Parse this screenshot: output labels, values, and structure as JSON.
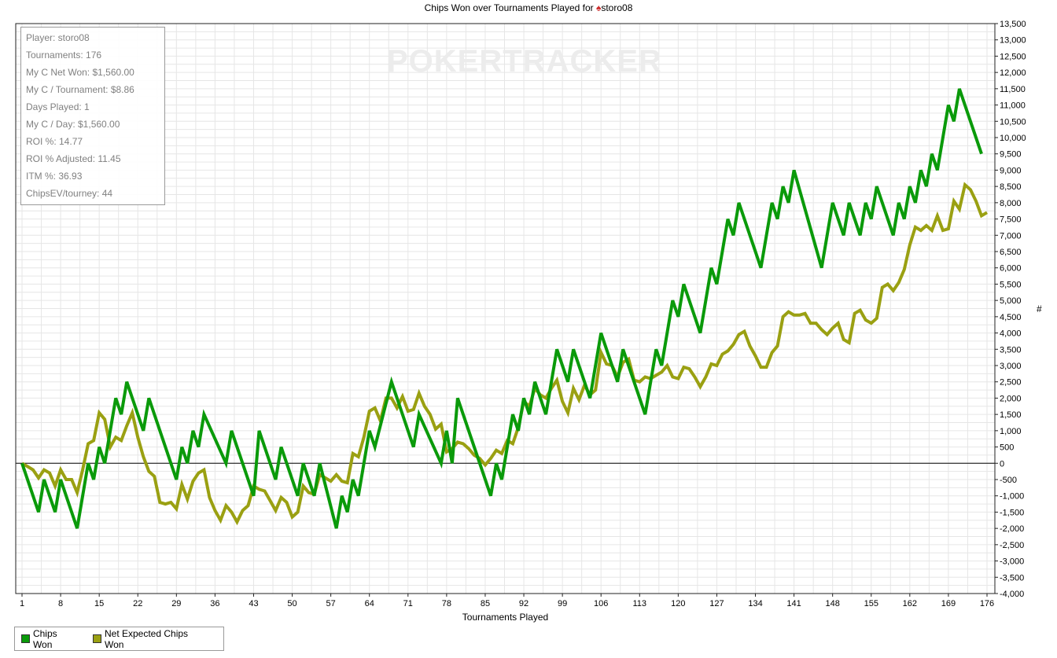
{
  "title": {
    "text": "Chips Won over Tournaments Played for",
    "player_icon": "spade-icon",
    "player": "storo08"
  },
  "watermark": "POKERTRACKER",
  "stats": [
    "Player: storo08",
    "Tournaments: 176",
    "My C Net Won: $1,560.00",
    "My C / Tournament: $8.86",
    "Days Played: 1",
    "My C / Day: $1,560.00",
    "ROI %: 14.77",
    "ROI % Adjusted: 11.45",
    "ITM %: 36.93",
    "ChipsEV/tourney: 44"
  ],
  "legend": [
    {
      "label": "Chips Won",
      "color": "#0a9a0a"
    },
    {
      "label": "Net Expected Chips Won",
      "color": "#9aa012"
    }
  ],
  "chart_data": {
    "type": "line",
    "xlabel": "Tournaments Played",
    "ylabel": "#",
    "xlim": [
      1,
      176
    ],
    "ylim": [
      -4000,
      13500
    ],
    "x_ticks": [
      1,
      8,
      15,
      22,
      29,
      36,
      43,
      50,
      57,
      64,
      71,
      78,
      85,
      92,
      99,
      106,
      113,
      120,
      127,
      134,
      141,
      148,
      155,
      162,
      169,
      176
    ],
    "y_ticks": [
      -4000,
      -3500,
      -3000,
      -2500,
      -2000,
      -1500,
      -1000,
      -500,
      0,
      500,
      1000,
      1500,
      2000,
      2500,
      3000,
      3500,
      4000,
      4500,
      5000,
      5500,
      6000,
      6500,
      7000,
      7500,
      8000,
      8500,
      9000,
      9500,
      10000,
      10500,
      11000,
      11500,
      12000,
      12500,
      13000,
      13500
    ],
    "grid": true,
    "legend_position": "bottom-left",
    "series": [
      {
        "name": "Chips Won",
        "color": "#0a9a0a",
        "points": [
          [
            1,
            0
          ],
          [
            4,
            -1500
          ],
          [
            5,
            -500
          ],
          [
            7,
            -1500
          ],
          [
            8,
            -500
          ],
          [
            11,
            -2000
          ],
          [
            13,
            0
          ],
          [
            14,
            -500
          ],
          [
            15,
            500
          ],
          [
            16,
            0
          ],
          [
            18,
            2000
          ],
          [
            19,
            1500
          ],
          [
            20,
            2500
          ],
          [
            23,
            1000
          ],
          [
            24,
            2000
          ],
          [
            29,
            -500
          ],
          [
            30,
            500
          ],
          [
            31,
            0
          ],
          [
            32,
            1000
          ],
          [
            33,
            500
          ],
          [
            34,
            1500
          ],
          [
            38,
            0
          ],
          [
            39,
            1000
          ],
          [
            43,
            -1000
          ],
          [
            44,
            1000
          ],
          [
            47,
            -500
          ],
          [
            48,
            500
          ],
          [
            51,
            -1000
          ],
          [
            52,
            0
          ],
          [
            54,
            -1000
          ],
          [
            55,
            0
          ],
          [
            58,
            -2000
          ],
          [
            59,
            -1000
          ],
          [
            60,
            -1500
          ],
          [
            61,
            -500
          ],
          [
            62,
            -1000
          ],
          [
            64,
            1000
          ],
          [
            65,
            500
          ],
          [
            68,
            2500
          ],
          [
            72,
            500
          ],
          [
            73,
            1500
          ],
          [
            77,
            0
          ],
          [
            78,
            1000
          ],
          [
            79,
            0
          ],
          [
            80,
            2000
          ],
          [
            86,
            -1000
          ],
          [
            87,
            0
          ],
          [
            88,
            -500
          ],
          [
            90,
            1500
          ],
          [
            91,
            1000
          ],
          [
            92,
            2000
          ],
          [
            93,
            1500
          ],
          [
            94,
            2500
          ],
          [
            96,
            1500
          ],
          [
            98,
            3500
          ],
          [
            100,
            2500
          ],
          [
            101,
            3500
          ],
          [
            104,
            2000
          ],
          [
            106,
            4000
          ],
          [
            109,
            2500
          ],
          [
            110,
            3500
          ],
          [
            114,
            1500
          ],
          [
            116,
            3500
          ],
          [
            117,
            3000
          ],
          [
            119,
            5000
          ],
          [
            120,
            4500
          ],
          [
            121,
            5500
          ],
          [
            124,
            4000
          ],
          [
            126,
            6000
          ],
          [
            127,
            5500
          ],
          [
            129,
            7500
          ],
          [
            130,
            7000
          ],
          [
            131,
            8000
          ],
          [
            135,
            6000
          ],
          [
            137,
            8000
          ],
          [
            138,
            7500
          ],
          [
            139,
            8500
          ],
          [
            140,
            8000
          ],
          [
            141,
            9000
          ],
          [
            146,
            6000
          ],
          [
            148,
            8000
          ],
          [
            150,
            7000
          ],
          [
            151,
            8000
          ],
          [
            153,
            7000
          ],
          [
            154,
            8000
          ],
          [
            155,
            7500
          ],
          [
            156,
            8500
          ],
          [
            159,
            7000
          ],
          [
            160,
            8000
          ],
          [
            161,
            7500
          ],
          [
            162,
            8500
          ],
          [
            163,
            8000
          ],
          [
            164,
            9000
          ],
          [
            165,
            8500
          ],
          [
            166,
            9500
          ],
          [
            167,
            9000
          ],
          [
            169,
            11000
          ],
          [
            170,
            10500
          ],
          [
            171,
            11500
          ],
          [
            175,
            9500
          ]
        ]
      },
      {
        "name": "Net Expected Chips Won",
        "color": "#9aa012",
        "points": [
          [
            1,
            0
          ],
          [
            2,
            -100
          ],
          [
            3,
            -200
          ],
          [
            4,
            -450
          ],
          [
            5,
            -200
          ],
          [
            6,
            -300
          ],
          [
            7,
            -700
          ],
          [
            8,
            -200
          ],
          [
            9,
            -500
          ],
          [
            10,
            -500
          ],
          [
            11,
            -900
          ],
          [
            12,
            -200
          ],
          [
            13,
            600
          ],
          [
            14,
            700
          ],
          [
            15,
            1550
          ],
          [
            16,
            1350
          ],
          [
            17,
            500
          ],
          [
            18,
            800
          ],
          [
            19,
            700
          ],
          [
            20,
            1150
          ],
          [
            21,
            1550
          ],
          [
            22,
            800
          ],
          [
            23,
            200
          ],
          [
            24,
            -250
          ],
          [
            25,
            -400
          ],
          [
            26,
            -1200
          ],
          [
            27,
            -1250
          ],
          [
            28,
            -1200
          ],
          [
            29,
            -1400
          ],
          [
            30,
            -650
          ],
          [
            31,
            -1100
          ],
          [
            32,
            -550
          ],
          [
            33,
            -300
          ],
          [
            34,
            -200
          ],
          [
            35,
            -1050
          ],
          [
            36,
            -1450
          ],
          [
            37,
            -1750
          ],
          [
            38,
            -1300
          ],
          [
            39,
            -1500
          ],
          [
            40,
            -1800
          ],
          [
            41,
            -1450
          ],
          [
            42,
            -1300
          ],
          [
            43,
            -700
          ],
          [
            44,
            -800
          ],
          [
            45,
            -850
          ],
          [
            46,
            -1150
          ],
          [
            47,
            -1450
          ],
          [
            48,
            -1050
          ],
          [
            49,
            -1200
          ],
          [
            50,
            -1650
          ],
          [
            51,
            -1500
          ],
          [
            52,
            -700
          ],
          [
            53,
            -900
          ],
          [
            54,
            -950
          ],
          [
            55,
            -350
          ],
          [
            56,
            -450
          ],
          [
            57,
            -550
          ],
          [
            58,
            -350
          ],
          [
            59,
            -550
          ],
          [
            60,
            -600
          ],
          [
            61,
            300
          ],
          [
            62,
            200
          ],
          [
            63,
            800
          ],
          [
            64,
            1600
          ],
          [
            65,
            1700
          ],
          [
            66,
            1300
          ],
          [
            67,
            2000
          ],
          [
            68,
            2000
          ],
          [
            69,
            1700
          ],
          [
            70,
            2050
          ],
          [
            71,
            1600
          ],
          [
            72,
            1650
          ],
          [
            73,
            2150
          ],
          [
            74,
            1750
          ],
          [
            75,
            1500
          ],
          [
            76,
            1050
          ],
          [
            77,
            1200
          ],
          [
            78,
            350
          ],
          [
            79,
            450
          ],
          [
            80,
            650
          ],
          [
            81,
            600
          ],
          [
            82,
            450
          ],
          [
            83,
            250
          ],
          [
            84,
            150
          ],
          [
            85,
            -50
          ],
          [
            86,
            150
          ],
          [
            87,
            400
          ],
          [
            88,
            300
          ],
          [
            89,
            700
          ],
          [
            90,
            600
          ],
          [
            91,
            1100
          ],
          [
            92,
            1900
          ],
          [
            93,
            1750
          ],
          [
            94,
            2300
          ],
          [
            95,
            2100
          ],
          [
            96,
            2000
          ],
          [
            97,
            2300
          ],
          [
            98,
            2550
          ],
          [
            99,
            1900
          ],
          [
            100,
            1550
          ],
          [
            101,
            2300
          ],
          [
            102,
            1950
          ],
          [
            103,
            2400
          ],
          [
            104,
            2100
          ],
          [
            105,
            2250
          ],
          [
            106,
            3400
          ],
          [
            107,
            3050
          ],
          [
            108,
            3000
          ],
          [
            109,
            2650
          ],
          [
            110,
            3100
          ],
          [
            111,
            3200
          ],
          [
            112,
            2550
          ],
          [
            113,
            2500
          ],
          [
            114,
            2650
          ],
          [
            115,
            2600
          ],
          [
            116,
            2700
          ],
          [
            117,
            2800
          ],
          [
            118,
            3000
          ],
          [
            119,
            2650
          ],
          [
            120,
            2600
          ],
          [
            121,
            2950
          ],
          [
            122,
            2900
          ],
          [
            123,
            2650
          ],
          [
            124,
            2350
          ],
          [
            125,
            2650
          ],
          [
            126,
            3050
          ],
          [
            127,
            3000
          ],
          [
            128,
            3350
          ],
          [
            129,
            3450
          ],
          [
            130,
            3650
          ],
          [
            131,
            3950
          ],
          [
            132,
            4050
          ],
          [
            133,
            3600
          ],
          [
            134,
            3300
          ],
          [
            135,
            2950
          ],
          [
            136,
            2950
          ],
          [
            137,
            3400
          ],
          [
            138,
            3600
          ],
          [
            139,
            4500
          ],
          [
            140,
            4650
          ],
          [
            141,
            4550
          ],
          [
            142,
            4550
          ],
          [
            143,
            4600
          ],
          [
            144,
            4300
          ],
          [
            145,
            4300
          ],
          [
            146,
            4100
          ],
          [
            147,
            3950
          ],
          [
            148,
            4150
          ],
          [
            149,
            4300
          ],
          [
            150,
            3800
          ],
          [
            151,
            3700
          ],
          [
            152,
            4600
          ],
          [
            153,
            4700
          ],
          [
            154,
            4400
          ],
          [
            155,
            4300
          ],
          [
            156,
            4450
          ],
          [
            157,
            5400
          ],
          [
            158,
            5500
          ],
          [
            159,
            5300
          ],
          [
            160,
            5550
          ],
          [
            161,
            5950
          ],
          [
            162,
            6700
          ],
          [
            163,
            7250
          ],
          [
            164,
            7150
          ],
          [
            165,
            7300
          ],
          [
            166,
            7150
          ],
          [
            167,
            7600
          ],
          [
            168,
            7150
          ],
          [
            169,
            7200
          ],
          [
            170,
            8050
          ],
          [
            171,
            7800
          ],
          [
            172,
            8550
          ],
          [
            173,
            8400
          ],
          [
            174,
            8050
          ],
          [
            175,
            7600
          ],
          [
            176,
            7700
          ]
        ]
      }
    ]
  }
}
